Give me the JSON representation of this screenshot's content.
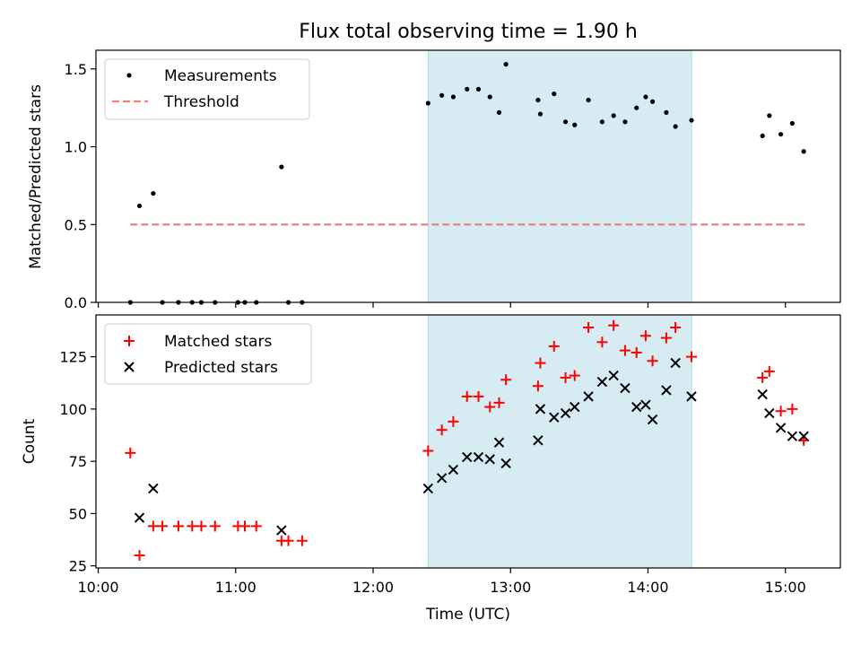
{
  "title": "Flux total observing time = 1.90 h",
  "colors": {
    "measurement": "#000000",
    "threshold": "#f08080",
    "matched": "#ff0000",
    "predicted": "#000000",
    "highlight": "#add8e6"
  },
  "chart_data": [
    {
      "type": "scatter",
      "ylabel": "Matched/Predicted stars",
      "ylim": [
        0,
        1.62
      ],
      "xlim": [
        "09:59",
        "15:24"
      ],
      "yticks": [
        "0.0",
        "0.5",
        "1.0",
        "1.5"
      ],
      "ytick_values": [
        0,
        0.5,
        1.0,
        1.5
      ],
      "highlight_span": [
        "12:24",
        "14:19"
      ],
      "legend": [
        "Measurements",
        "Threshold"
      ],
      "legend_position": "top-left",
      "threshold": {
        "name": "Threshold",
        "value": 0.5,
        "x_range": [
          "10:14",
          "15:10"
        ]
      },
      "series": [
        {
          "name": "Measurements",
          "marker": "dot",
          "points": [
            [
              "10:14",
              0.0
            ],
            [
              "10:18",
              0.62
            ],
            [
              "10:24",
              0.7
            ],
            [
              "10:28",
              0.0
            ],
            [
              "10:35",
              0.0
            ],
            [
              "10:41",
              0.0
            ],
            [
              "10:45",
              0.0
            ],
            [
              "10:51",
              0.0
            ],
            [
              "11:01",
              0.0
            ],
            [
              "11:04",
              0.0
            ],
            [
              "11:09",
              0.0
            ],
            [
              "11:20",
              0.87
            ],
            [
              "11:23",
              0.0
            ],
            [
              "11:29",
              0.0
            ],
            [
              "12:24",
              1.28
            ],
            [
              "12:30",
              1.33
            ],
            [
              "12:35",
              1.32
            ],
            [
              "12:41",
              1.37
            ],
            [
              "12:46",
              1.37
            ],
            [
              "12:51",
              1.32
            ],
            [
              "12:55",
              1.22
            ],
            [
              "12:58",
              1.53
            ],
            [
              "13:12",
              1.3
            ],
            [
              "13:13",
              1.21
            ],
            [
              "13:19",
              1.34
            ],
            [
              "13:24",
              1.16
            ],
            [
              "13:28",
              1.14
            ],
            [
              "13:34",
              1.3
            ],
            [
              "13:40",
              1.16
            ],
            [
              "13:45",
              1.2
            ],
            [
              "13:50",
              1.16
            ],
            [
              "13:55",
              1.25
            ],
            [
              "13:59",
              1.32
            ],
            [
              "14:02",
              1.29
            ],
            [
              "14:08",
              1.22
            ],
            [
              "14:12",
              1.13
            ],
            [
              "14:19",
              1.17
            ],
            [
              "14:50",
              1.07
            ],
            [
              "14:53",
              1.2
            ],
            [
              "14:58",
              1.08
            ],
            [
              "15:03",
              1.15
            ],
            [
              "15:08",
              0.97
            ]
          ]
        }
      ]
    },
    {
      "type": "scatter",
      "ylabel": "Count",
      "xlabel": "Time (UTC)",
      "ylim": [
        24,
        145
      ],
      "xlim": [
        "09:59",
        "15:24"
      ],
      "yticks": [
        "25",
        "50",
        "75",
        "100",
        "125"
      ],
      "ytick_values": [
        25,
        50,
        75,
        100,
        125
      ],
      "xticks": [
        "10:00",
        "11:00",
        "12:00",
        "13:00",
        "14:00",
        "15:00"
      ],
      "highlight_span": [
        "12:24",
        "14:19"
      ],
      "legend": [
        "Matched stars",
        "Predicted stars"
      ],
      "legend_position": "top-left",
      "series": [
        {
          "name": "Matched stars",
          "marker": "plus",
          "points": [
            [
              "10:14",
              79
            ],
            [
              "10:18",
              30
            ],
            [
              "10:24",
              44
            ],
            [
              "10:28",
              44
            ],
            [
              "10:35",
              44
            ],
            [
              "10:41",
              44
            ],
            [
              "10:45",
              44
            ],
            [
              "10:51",
              44
            ],
            [
              "11:01",
              44
            ],
            [
              "11:04",
              44
            ],
            [
              "11:09",
              44
            ],
            [
              "11:20",
              37
            ],
            [
              "11:23",
              37
            ],
            [
              "11:29",
              37
            ],
            [
              "12:24",
              80
            ],
            [
              "12:30",
              90
            ],
            [
              "12:35",
              94
            ],
            [
              "12:41",
              106
            ],
            [
              "12:46",
              106
            ],
            [
              "12:51",
              101
            ],
            [
              "12:55",
              103
            ],
            [
              "12:58",
              114
            ],
            [
              "13:12",
              111
            ],
            [
              "13:13",
              122
            ],
            [
              "13:19",
              130
            ],
            [
              "13:24",
              115
            ],
            [
              "13:28",
              116
            ],
            [
              "13:34",
              139
            ],
            [
              "13:40",
              132
            ],
            [
              "13:45",
              140
            ],
            [
              "13:50",
              128
            ],
            [
              "13:55",
              127
            ],
            [
              "13:59",
              135
            ],
            [
              "14:02",
              123
            ],
            [
              "14:08",
              134
            ],
            [
              "14:12",
              139
            ],
            [
              "14:19",
              125
            ],
            [
              "14:50",
              115
            ],
            [
              "14:53",
              118
            ],
            [
              "14:58",
              99
            ],
            [
              "15:03",
              100
            ],
            [
              "15:08",
              85
            ]
          ]
        },
        {
          "name": "Predicted stars",
          "marker": "x",
          "points": [
            [
              "10:18",
              48
            ],
            [
              "10:24",
              62
            ],
            [
              "11:20",
              42
            ],
            [
              "12:24",
              62
            ],
            [
              "12:30",
              67
            ],
            [
              "12:35",
              71
            ],
            [
              "12:41",
              77
            ],
            [
              "12:46",
              77
            ],
            [
              "12:51",
              76
            ],
            [
              "12:55",
              84
            ],
            [
              "12:58",
              74
            ],
            [
              "13:12",
              85
            ],
            [
              "13:13",
              100
            ],
            [
              "13:19",
              96
            ],
            [
              "13:24",
              98
            ],
            [
              "13:28",
              101
            ],
            [
              "13:34",
              106
            ],
            [
              "13:40",
              113
            ],
            [
              "13:45",
              116
            ],
            [
              "13:50",
              110
            ],
            [
              "13:55",
              101
            ],
            [
              "13:59",
              102
            ],
            [
              "14:02",
              95
            ],
            [
              "14:08",
              109
            ],
            [
              "14:12",
              122
            ],
            [
              "14:19",
              106
            ],
            [
              "14:50",
              107
            ],
            [
              "14:53",
              98
            ],
            [
              "14:58",
              91
            ],
            [
              "15:03",
              87
            ],
            [
              "15:08",
              87
            ]
          ]
        }
      ]
    }
  ]
}
